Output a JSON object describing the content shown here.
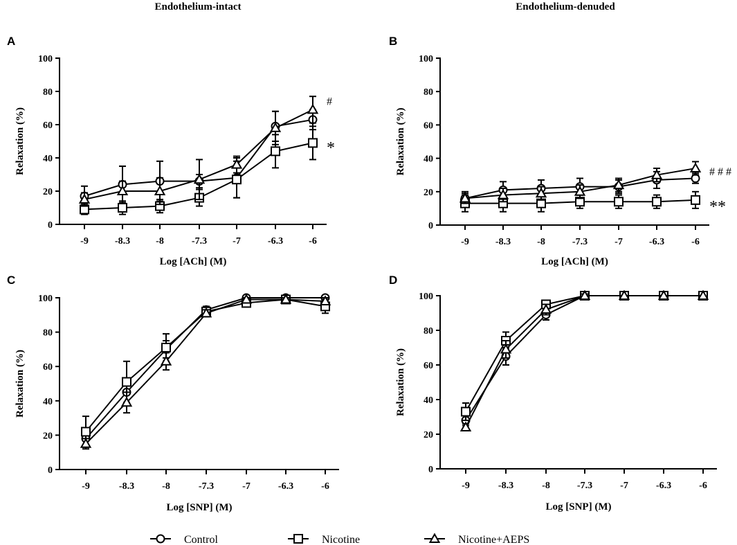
{
  "column_titles": [
    "Endothelium-intact",
    "Endothelium-denuded"
  ],
  "legend": [
    {
      "name": "Control",
      "marker": "circle-icon"
    },
    {
      "name": "Nicotine",
      "marker": "square-icon"
    },
    {
      "name": "Nicotine+AEPS",
      "marker": "triangle-icon"
    }
  ],
  "chart_data": [
    {
      "panel": "A",
      "type": "line",
      "xlabel": "Log [ACh] (M)",
      "ylabel": "Relaxation (%)",
      "categories": [
        "-9",
        "-8.3",
        "-8",
        "-7.3",
        "-7",
        "-6.3",
        "-6"
      ],
      "ylim": [
        0,
        100
      ],
      "yticks": [
        "0",
        "20",
        "40",
        "60",
        "80",
        "100"
      ],
      "series": [
        {
          "name": "Control",
          "marker": "circle",
          "values": [
            17,
            24,
            26,
            26,
            28,
            59,
            63
          ],
          "errors": [
            6,
            11,
            12,
            4,
            12,
            9,
            6
          ]
        },
        {
          "name": "Nicotine",
          "marker": "square",
          "values": [
            9,
            10,
            11,
            16,
            27,
            44,
            49
          ],
          "errors": [
            3,
            4,
            4,
            5,
            11,
            10,
            10
          ]
        },
        {
          "name": "Nicotine+AEPS",
          "marker": "triangle",
          "values": [
            15,
            20,
            20,
            27,
            36,
            58,
            69
          ],
          "errors": [
            4,
            6,
            8,
            12,
            5,
            10,
            8
          ]
        }
      ],
      "annotations": [
        {
          "text": "#",
          "x": "-6",
          "y": 74,
          "style": "small"
        },
        {
          "text": "*",
          "x": "-6",
          "y": 47,
          "style": "big"
        }
      ]
    },
    {
      "panel": "B",
      "type": "line",
      "xlabel": "Log [ACh] (M)",
      "ylabel": "Relaxation (%)",
      "categories": [
        "-9",
        "-8.3",
        "-8",
        "-7.3",
        "-7",
        "-6.3",
        "-6"
      ],
      "ylim": [
        0,
        100
      ],
      "yticks": [
        "0",
        "20",
        "40",
        "60",
        "80",
        "100"
      ],
      "series": [
        {
          "name": "Control",
          "marker": "circle",
          "values": [
            16,
            21,
            22,
            23,
            23,
            27,
            28
          ],
          "errors": [
            4,
            5,
            5,
            5,
            4,
            5,
            3
          ]
        },
        {
          "name": "Nicotine",
          "marker": "square",
          "values": [
            13,
            13,
            13,
            14,
            14,
            14,
            15
          ],
          "errors": [
            5,
            5,
            5,
            4,
            4,
            4,
            5
          ]
        },
        {
          "name": "Nicotine+AEPS",
          "marker": "triangle",
          "values": [
            16,
            18,
            19,
            20,
            24,
            30,
            34
          ],
          "errors": [
            3,
            4,
            4,
            4,
            4,
            4,
            4
          ]
        }
      ],
      "annotations": [
        {
          "text": "# # #",
          "x": "-6",
          "y": 32,
          "style": "small"
        },
        {
          "text": "**",
          "x": "-6",
          "y": 12,
          "style": "big"
        }
      ]
    },
    {
      "panel": "C",
      "type": "line",
      "xlabel": "Log [SNP] (M)",
      "ylabel": "Relaxation (%)",
      "categories": [
        "-9",
        "-8.3",
        "-8",
        "-7.3",
        "-7",
        "-6.3",
        "-6"
      ],
      "ylim": [
        0,
        100
      ],
      "yticks": [
        "0",
        "20",
        "40",
        "60",
        "80",
        "100"
      ],
      "series": [
        {
          "name": "Control",
          "marker": "circle",
          "values": [
            18,
            45,
            70,
            93,
            100,
            100,
            100
          ],
          "errors": [
            4,
            6,
            5,
            2,
            1,
            1,
            1
          ]
        },
        {
          "name": "Nicotine",
          "marker": "square",
          "values": [
            22,
            51,
            71,
            92,
            97,
            99,
            95
          ],
          "errors": [
            9,
            12,
            8,
            2,
            2,
            1,
            4
          ]
        },
        {
          "name": "Nicotine+AEPS",
          "marker": "triangle",
          "values": [
            15,
            39,
            63,
            91,
            99,
            99,
            98
          ],
          "errors": [
            3,
            6,
            5,
            2,
            1,
            1,
            2
          ]
        }
      ],
      "annotations": []
    },
    {
      "panel": "D",
      "type": "line",
      "xlabel": "Log [SNP] (M)",
      "ylabel": "Relaxation (%)",
      "categories": [
        "-9",
        "-8.3",
        "-8",
        "-7.3",
        "-7",
        "-6.3",
        "-6"
      ],
      "ylim": [
        0,
        100
      ],
      "yticks": [
        "0",
        "20",
        "40",
        "60",
        "80",
        "100"
      ],
      "series": [
        {
          "name": "Control",
          "marker": "circle",
          "values": [
            28,
            65,
            89,
            100,
            100,
            100,
            100
          ],
          "errors": [
            3,
            5,
            3,
            1,
            0,
            0,
            0
          ]
        },
        {
          "name": "Nicotine",
          "marker": "square",
          "values": [
            33,
            74,
            95,
            100,
            100,
            100,
            100
          ],
          "errors": [
            5,
            5,
            2,
            1,
            0,
            0,
            0
          ]
        },
        {
          "name": "Nicotine+AEPS",
          "marker": "triangle",
          "values": [
            24,
            69,
            92,
            100,
            100,
            100,
            100
          ],
          "errors": [
            2,
            5,
            3,
            1,
            0,
            0,
            0
          ]
        }
      ],
      "annotations": []
    }
  ]
}
